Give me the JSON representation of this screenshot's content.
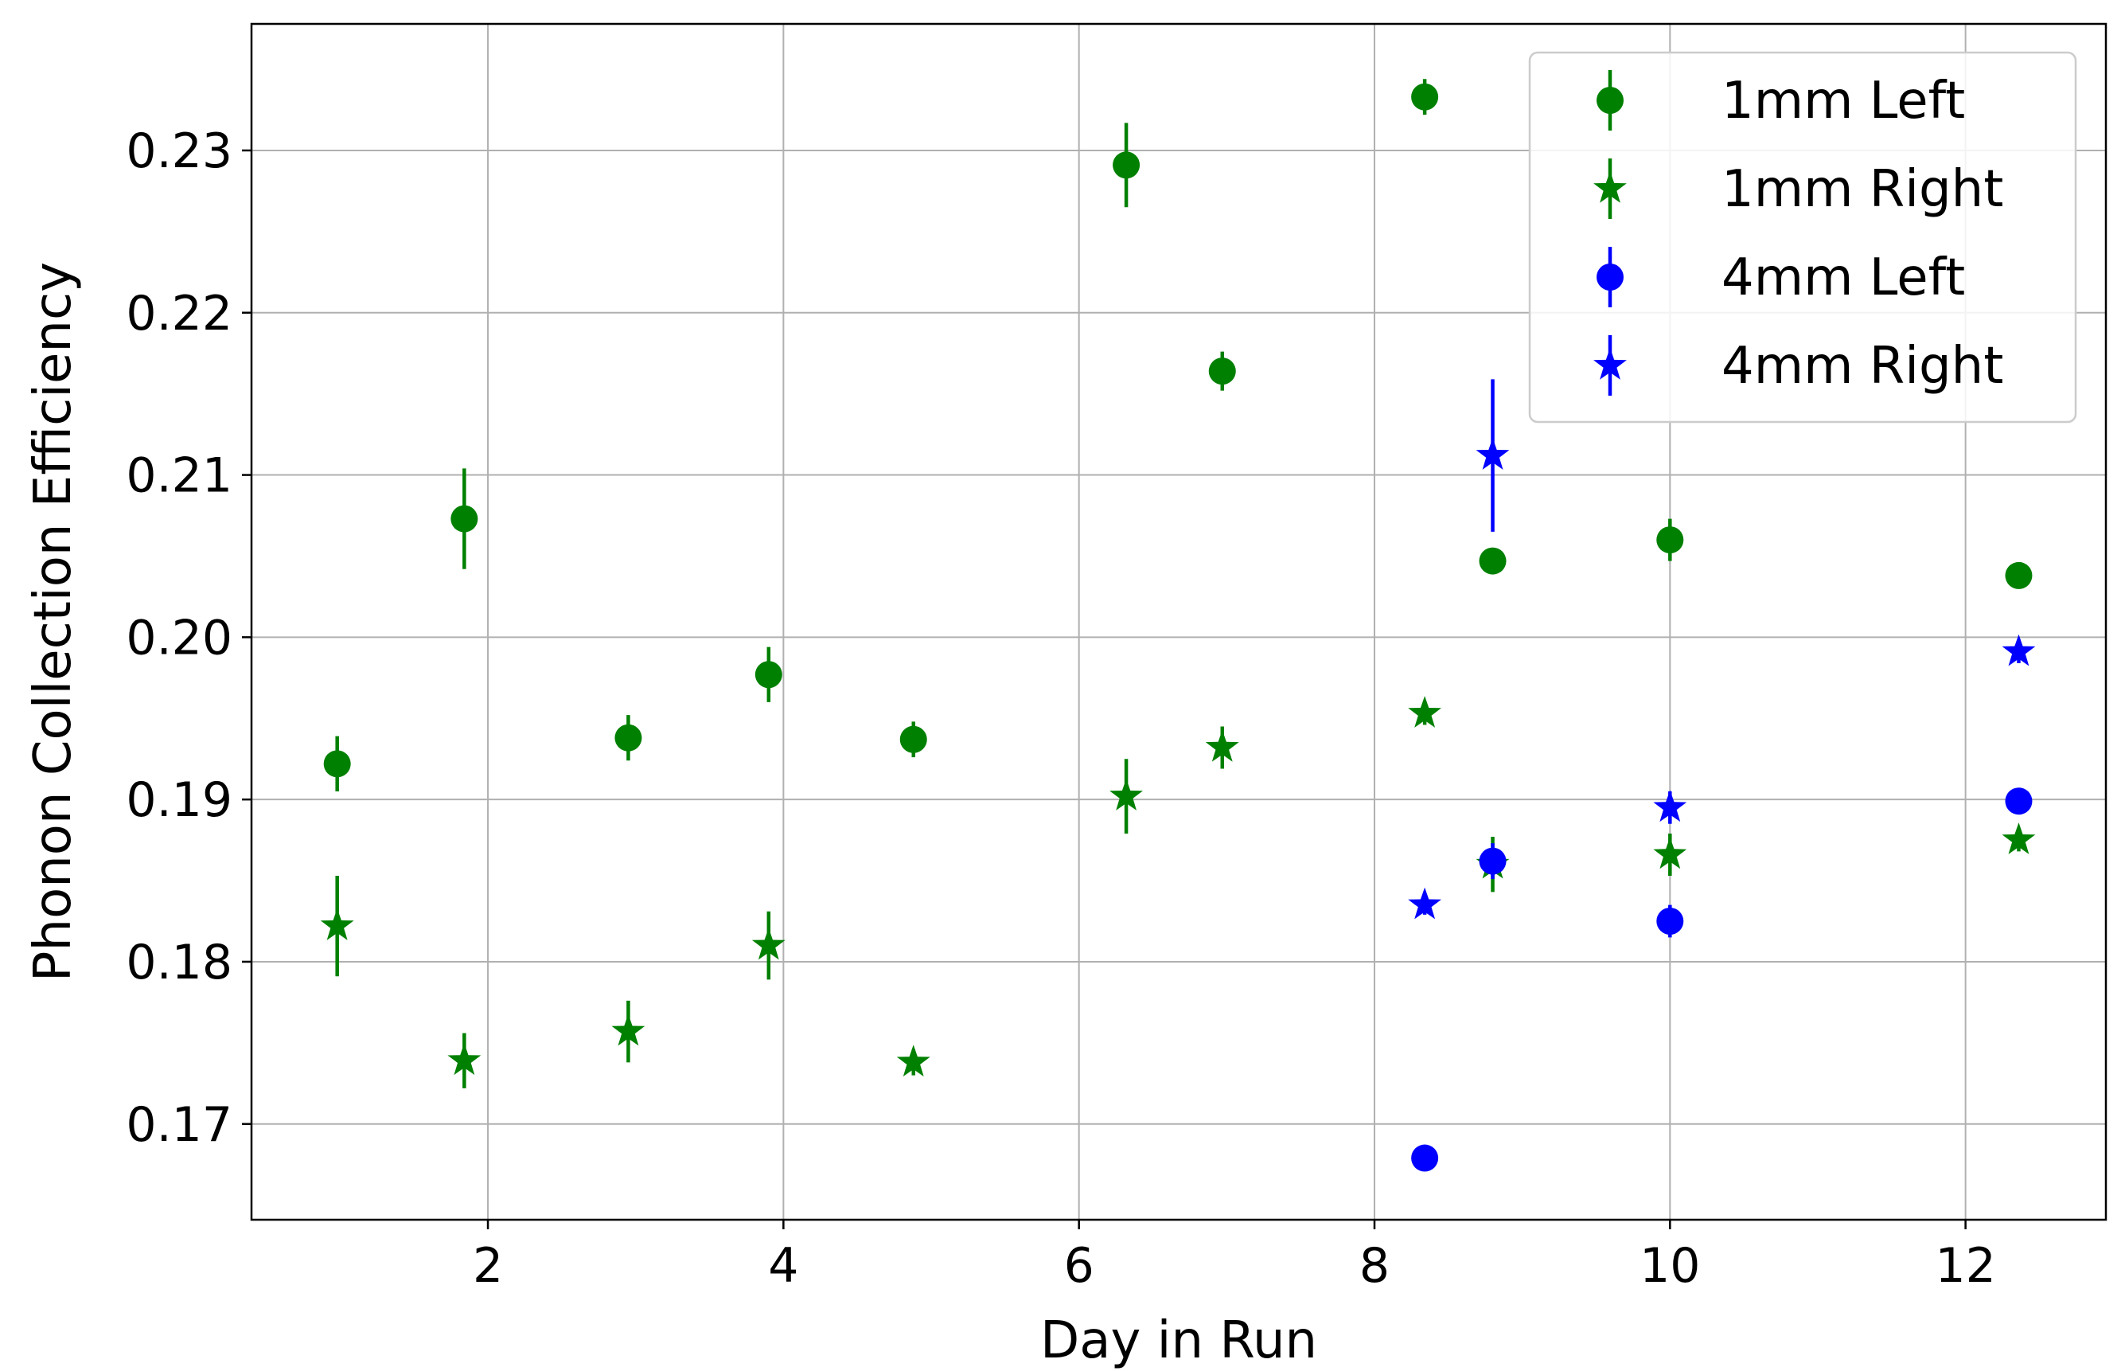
{
  "chart_data": {
    "type": "scatter",
    "xlabel": "Day in Run",
    "ylabel": "Phonon Collection Efficiency",
    "xlim": [
      0.4,
      12.95
    ],
    "ylim": [
      0.1641,
      0.2378
    ],
    "x_ticks": [
      2,
      4,
      6,
      8,
      10,
      12
    ],
    "y_ticks": [
      0.17,
      0.18,
      0.19,
      0.2,
      0.21,
      0.22,
      0.23
    ],
    "x_tick_labels": [
      "2",
      "4",
      "6",
      "8",
      "10",
      "12"
    ],
    "y_tick_labels": [
      "0.17",
      "0.18",
      "0.19",
      "0.20",
      "0.21",
      "0.22",
      "0.23"
    ],
    "grid": true,
    "legend_position": "top-right",
    "series": [
      {
        "name": "1mm Left",
        "color": "#008000",
        "marker": "circle",
        "points": [
          {
            "x": 0.98,
            "y": 0.1922,
            "err": 0.0017
          },
          {
            "x": 1.84,
            "y": 0.2073,
            "err": 0.0031
          },
          {
            "x": 2.95,
            "y": 0.1938,
            "err": 0.0014
          },
          {
            "x": 3.9,
            "y": 0.1977,
            "err": 0.0017
          },
          {
            "x": 4.88,
            "y": 0.1937,
            "err": 0.0011
          },
          {
            "x": 6.32,
            "y": 0.2291,
            "err": 0.0026
          },
          {
            "x": 6.97,
            "y": 0.2164,
            "err": 0.0012
          },
          {
            "x": 8.34,
            "y": 0.2333,
            "err": 0.0011
          },
          {
            "x": 8.8,
            "y": 0.2047,
            "err": 0.0007
          },
          {
            "x": 10.0,
            "y": 0.206,
            "err": 0.0013
          },
          {
            "x": 12.36,
            "y": 0.2038,
            "err": 0.0006
          }
        ]
      },
      {
        "name": "1mm Right",
        "color": "#008000",
        "marker": "star",
        "points": [
          {
            "x": 0.98,
            "y": 0.1822,
            "err": 0.0031
          },
          {
            "x": 1.84,
            "y": 0.1739,
            "err": 0.0017
          },
          {
            "x": 2.95,
            "y": 0.1757,
            "err": 0.0019
          },
          {
            "x": 3.9,
            "y": 0.181,
            "err": 0.0021
          },
          {
            "x": 4.88,
            "y": 0.1738,
            "err": 0.0008
          },
          {
            "x": 6.32,
            "y": 0.1902,
            "err": 0.0023
          },
          {
            "x": 6.97,
            "y": 0.1932,
            "err": 0.0013
          },
          {
            "x": 8.34,
            "y": 0.1953,
            "err": 0.0007
          },
          {
            "x": 8.8,
            "y": 0.186,
            "err": 0.0017
          },
          {
            "x": 10.0,
            "y": 0.1866,
            "err": 0.0013
          },
          {
            "x": 12.36,
            "y": 0.1875,
            "err": 0.0007
          }
        ]
      },
      {
        "name": "4mm Left",
        "color": "#0000ff",
        "marker": "circle",
        "points": [
          {
            "x": 8.34,
            "y": 0.1679,
            "err": 0.0005
          },
          {
            "x": 8.8,
            "y": 0.1862,
            "err": 0.0011
          },
          {
            "x": 10.0,
            "y": 0.1825,
            "err": 0.001
          },
          {
            "x": 12.36,
            "y": 0.1899,
            "err": 0.0006
          }
        ]
      },
      {
        "name": "4mm Right",
        "color": "#0000ff",
        "marker": "star",
        "points": [
          {
            "x": 8.34,
            "y": 0.1835,
            "err": 0.0006
          },
          {
            "x": 8.8,
            "y": 0.2112,
            "err": 0.0047
          },
          {
            "x": 10.0,
            "y": 0.1895,
            "err": 0.001
          },
          {
            "x": 12.36,
            "y": 0.1991,
            "err": 0.0007
          }
        ]
      }
    ]
  }
}
